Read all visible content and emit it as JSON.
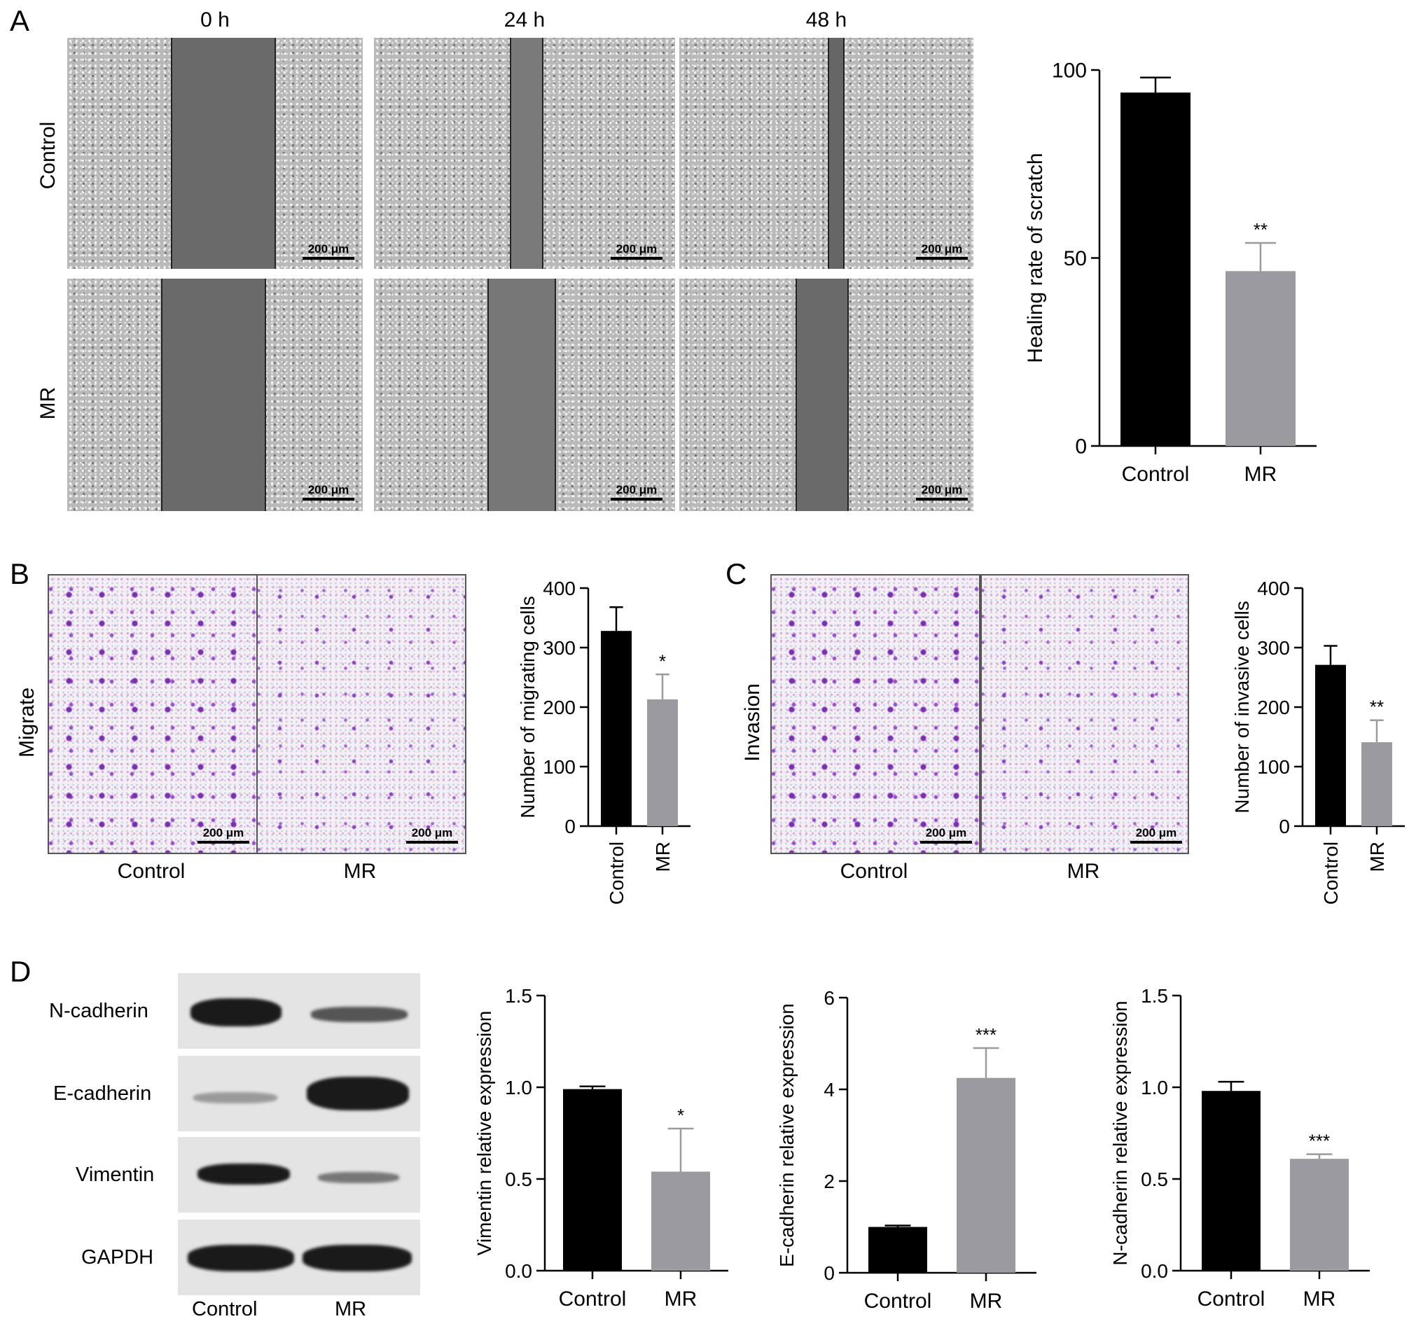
{
  "panels": {
    "A": {
      "letter": "A",
      "time_headers": [
        "0 h",
        "24 h",
        "48 h"
      ],
      "row_labels": [
        "Control",
        "MR"
      ],
      "scale_label": "200 μm"
    },
    "B": {
      "letter": "B",
      "row_label": "Migrate",
      "image_labels": [
        "Control",
        "MR"
      ],
      "scale_label": "200 μm"
    },
    "C": {
      "letter": "C",
      "row_label": "Invasion",
      "image_labels": [
        "Control",
        "MR"
      ],
      "scale_label": "200 μm"
    },
    "D": {
      "letter": "D",
      "blot_labels": [
        "N-cadherin",
        "E-cadherin",
        "Vimentin",
        "GAPDH"
      ],
      "lane_labels": [
        "Control",
        "MR"
      ]
    }
  },
  "chart_data": [
    {
      "id": "scratch",
      "type": "bar",
      "categories": [
        "Control",
        "MR"
      ],
      "values": [
        94,
        46.5
      ],
      "errors": [
        4,
        7.5
      ],
      "significance": [
        "",
        "**"
      ],
      "colors": [
        "#000000",
        "#9a9aa0"
      ],
      "ylabel": "Healing rate of scratch",
      "ylim": [
        0,
        100
      ],
      "yticks": [
        0,
        50,
        100
      ],
      "ytick_labels": [
        "0",
        "50",
        "100"
      ]
    },
    {
      "id": "migrating",
      "type": "bar",
      "categories": [
        "Control",
        "MR"
      ],
      "values": [
        328,
        213
      ],
      "errors": [
        40,
        42
      ],
      "significance": [
        "",
        "*"
      ],
      "colors": [
        "#000000",
        "#9a9aa0"
      ],
      "ylabel": "Number of migrating cells",
      "ylim": [
        0,
        400
      ],
      "yticks": [
        0,
        100,
        200,
        300,
        400
      ],
      "ytick_labels": [
        "0",
        "100",
        "200",
        "300",
        "400"
      ]
    },
    {
      "id": "invasive",
      "type": "bar",
      "categories": [
        "Control",
        "MR"
      ],
      "values": [
        271,
        141
      ],
      "errors": [
        32,
        37
      ],
      "significance": [
        "",
        "**"
      ],
      "colors": [
        "#000000",
        "#9a9aa0"
      ],
      "ylabel": "Number of invasive cells",
      "ylim": [
        0,
        400
      ],
      "yticks": [
        0,
        100,
        200,
        300,
        400
      ],
      "ytick_labels": [
        "0",
        "100",
        "200",
        "300",
        "400"
      ]
    },
    {
      "id": "vimentin",
      "type": "bar",
      "categories": [
        "Control",
        "MR"
      ],
      "values": [
        0.99,
        0.54
      ],
      "errors": [
        0.015,
        0.235
      ],
      "significance": [
        "",
        "*"
      ],
      "colors": [
        "#000000",
        "#9a9aa0"
      ],
      "ylabel": "Vimentin relative expression",
      "ylim": [
        0,
        1.5
      ],
      "yticks": [
        0,
        0.5,
        1.0,
        1.5
      ],
      "ytick_labels": [
        "0.0",
        "0.5",
        "1.0",
        "1.5"
      ]
    },
    {
      "id": "ecadherin",
      "type": "bar",
      "categories": [
        "Control",
        "MR"
      ],
      "values": [
        1.0,
        4.25
      ],
      "errors": [
        0.03,
        0.65
      ],
      "significance": [
        "",
        "***"
      ],
      "colors": [
        "#000000",
        "#9a9aa0"
      ],
      "ylabel": "E-cadherin relative expression",
      "ylim": [
        0,
        6
      ],
      "yticks": [
        0,
        2,
        4,
        6
      ],
      "ytick_labels": [
        "0",
        "2",
        "4",
        "6"
      ]
    },
    {
      "id": "ncadherin",
      "type": "bar",
      "categories": [
        "Control",
        "MR"
      ],
      "values": [
        0.98,
        0.61
      ],
      "errors": [
        0.05,
        0.025
      ],
      "significance": [
        "",
        "***"
      ],
      "colors": [
        "#000000",
        "#9a9aa0"
      ],
      "ylabel": "N-cadherin relative expression",
      "ylim": [
        0,
        1.5
      ],
      "yticks": [
        0,
        0.5,
        1.0,
        1.5
      ],
      "ytick_labels": [
        "0.0",
        "0.5",
        "1.0",
        "1.5"
      ]
    }
  ]
}
